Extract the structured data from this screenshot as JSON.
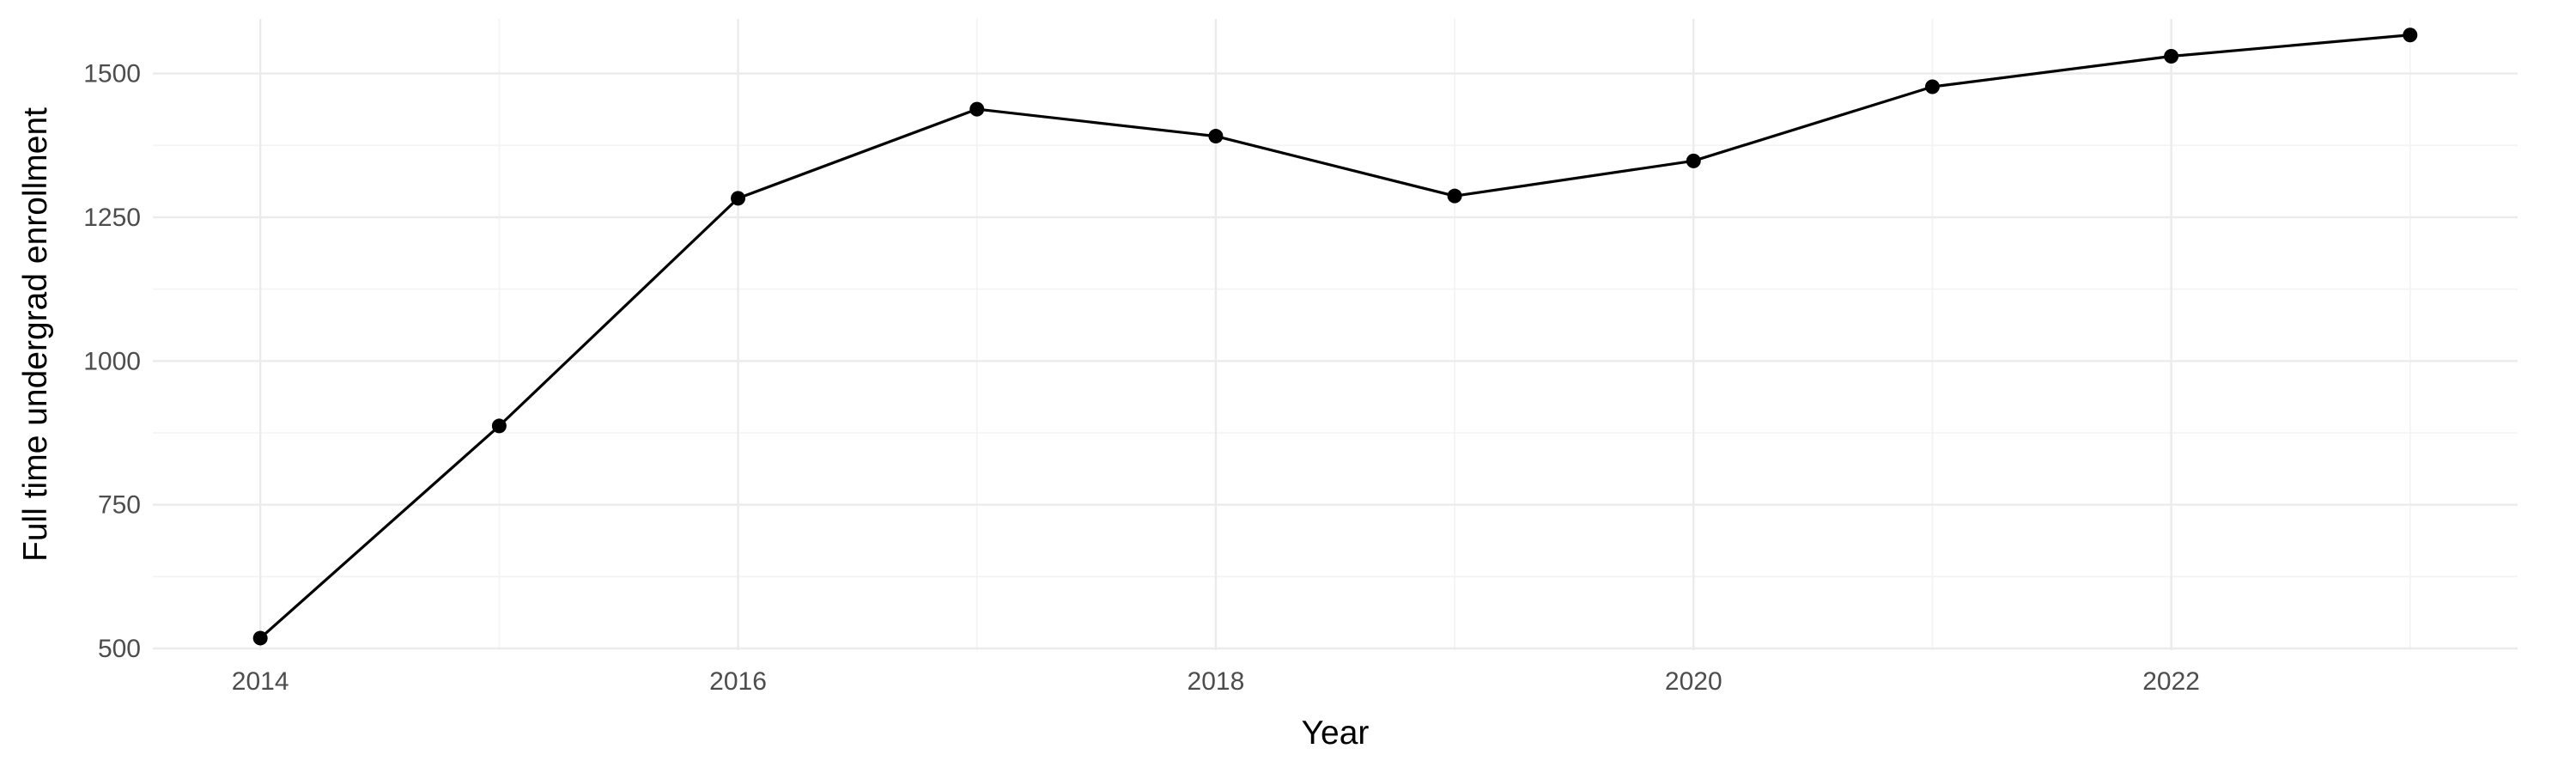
{
  "chart_data": {
    "type": "line",
    "title": "",
    "xlabel": "Year",
    "ylabel": "Full time undergrad enrollment",
    "xlim": [
      2013.55,
      2023.45
    ],
    "ylim": [
      497,
      1595
    ],
    "x_ticks": [
      2014,
      2016,
      2018,
      2020,
      2022
    ],
    "y_ticks": [
      500,
      750,
      1000,
      1250,
      1500
    ],
    "grid": true,
    "legend": "none",
    "series": [
      {
        "x": [
          2014,
          2015,
          2016,
          2017,
          2018,
          2019,
          2020,
          2021,
          2022,
          2023
        ],
        "values": [
          518,
          887,
          1283,
          1438,
          1391,
          1287,
          1348,
          1477,
          1530,
          1567
        ]
      }
    ],
    "colors": {
      "line": "#000000",
      "point": "#000000",
      "grid_major": "#ebebeb",
      "grid_minor": "#f4f4f4",
      "tick_text": "#4d4d4d",
      "title_text": "#000000"
    }
  }
}
